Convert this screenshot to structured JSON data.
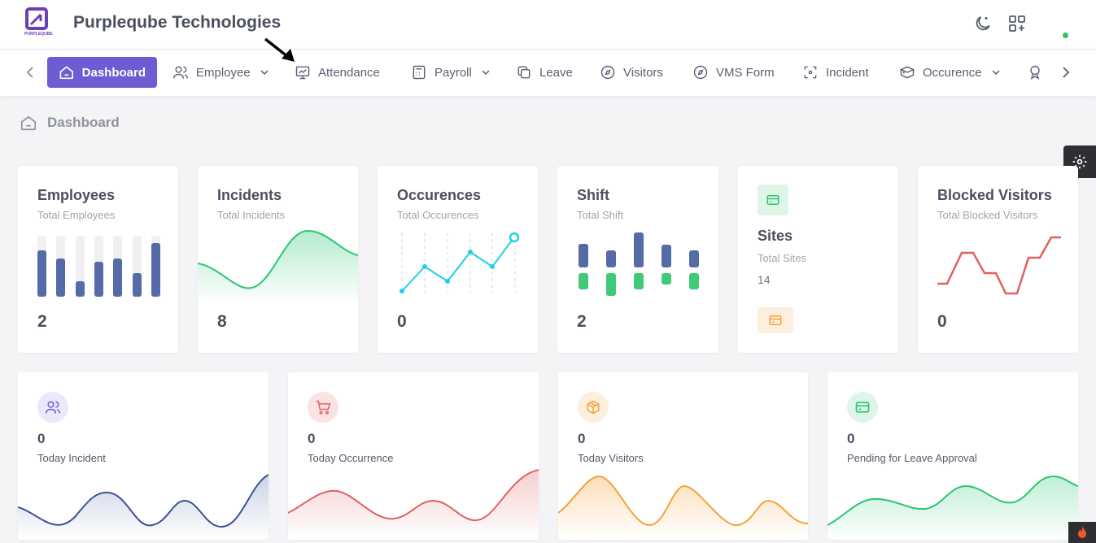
{
  "header": {
    "company_name": "Purpleqube Technologies",
    "logo_text": "PURPLEQUBE"
  },
  "nav": {
    "items": [
      {
        "label": "Dashboard",
        "icon": "home-icon",
        "active": true
      },
      {
        "label": "Employee",
        "icon": "users-icon",
        "dropdown": true
      },
      {
        "label": "Attendance",
        "icon": "monitor-icon"
      },
      {
        "label": "Payroll",
        "icon": "calculator-icon",
        "dropdown": true
      },
      {
        "label": "Leave",
        "icon": "copy-icon"
      },
      {
        "label": "Visitors",
        "icon": "compass-icon"
      },
      {
        "label": "VMS Form",
        "icon": "compass-icon"
      },
      {
        "label": "Incident",
        "icon": "focus-icon"
      },
      {
        "label": "Occurence",
        "icon": "box-icon",
        "dropdown": true
      }
    ]
  },
  "breadcrumb": {
    "label": "Dashboard"
  },
  "stats": {
    "employees": {
      "title": "Employees",
      "subtitle": "Total Employees",
      "value": "2"
    },
    "incidents": {
      "title": "Incidents",
      "subtitle": "Total Incidents",
      "value": "8"
    },
    "occurences": {
      "title": "Occurences",
      "subtitle": "Total Occurences",
      "value": "0"
    },
    "shift": {
      "title": "Shift",
      "subtitle": "Total Shift",
      "value": "2"
    },
    "sites": {
      "title": "Sites",
      "subtitle": "Total Sites",
      "value": "14"
    },
    "blocked": {
      "title": "Blocked Visitors",
      "subtitle": "Total Blocked Visitors",
      "value": "0"
    }
  },
  "bottom": {
    "today_incident": {
      "value": "0",
      "label": "Today Incident"
    },
    "today_occurrence": {
      "value": "0",
      "label": "Today Occurrence"
    },
    "today_visitors": {
      "value": "0",
      "label": "Today Visitors"
    },
    "pending_leave": {
      "value": "0",
      "label": "Pending for Leave Approval"
    }
  },
  "colors": {
    "accent": "#6c5dd3",
    "blue": "#546ba8",
    "green": "#28c76f",
    "cyan": "#1fd0e6",
    "red": "#e16060",
    "orange": "#f4a23a"
  }
}
